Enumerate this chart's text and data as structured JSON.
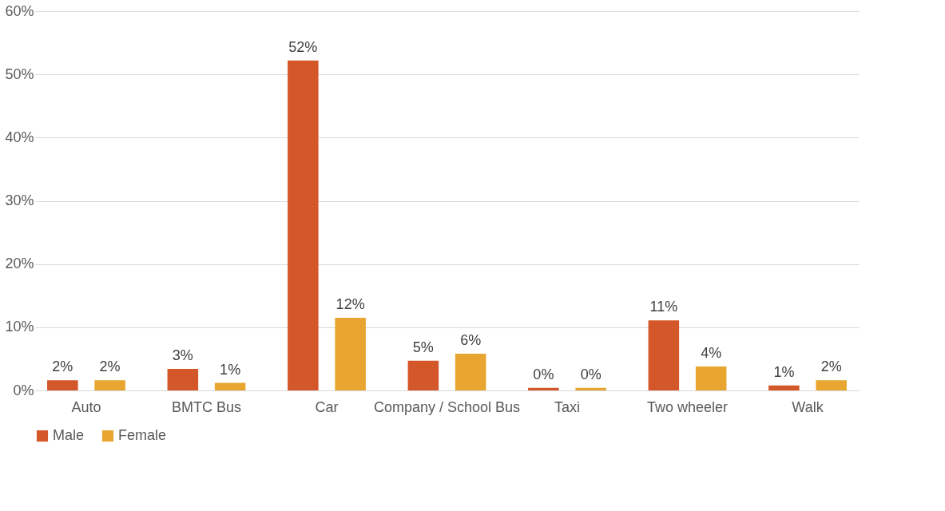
{
  "chart_data": {
    "type": "bar",
    "categories": [
      "Auto",
      "BMTC Bus",
      "Car",
      "Company / School Bus",
      "Taxi",
      "Two wheeler",
      "Walk"
    ],
    "series": [
      {
        "name": "Male",
        "color": "#d4572a",
        "values": [
          1.6,
          3.4,
          52.2,
          4.7,
          0.4,
          11.1,
          0.8
        ],
        "value_labels": [
          "2%",
          "3%",
          "52%",
          "5%",
          "0%",
          "11%",
          "1%"
        ]
      },
      {
        "name": "Female",
        "color": "#e8a530",
        "values": [
          1.6,
          1.2,
          11.5,
          5.8,
          0.4,
          3.8,
          1.6
        ],
        "value_labels": [
          "2%",
          "1%",
          "12%",
          "6%",
          "0%",
          "4%",
          "2%"
        ]
      }
    ],
    "ylim": [
      0,
      60
    ],
    "yticks": [
      {
        "value": 0,
        "label": "0%"
      },
      {
        "value": 10,
        "label": "10%"
      },
      {
        "value": 20,
        "label": "20%"
      },
      {
        "value": 30,
        "label": "30%"
      },
      {
        "value": 40,
        "label": "40%"
      },
      {
        "value": 50,
        "label": "50%"
      },
      {
        "value": 60,
        "label": "60%"
      }
    ],
    "grid": "y",
    "legend": "bottom"
  }
}
